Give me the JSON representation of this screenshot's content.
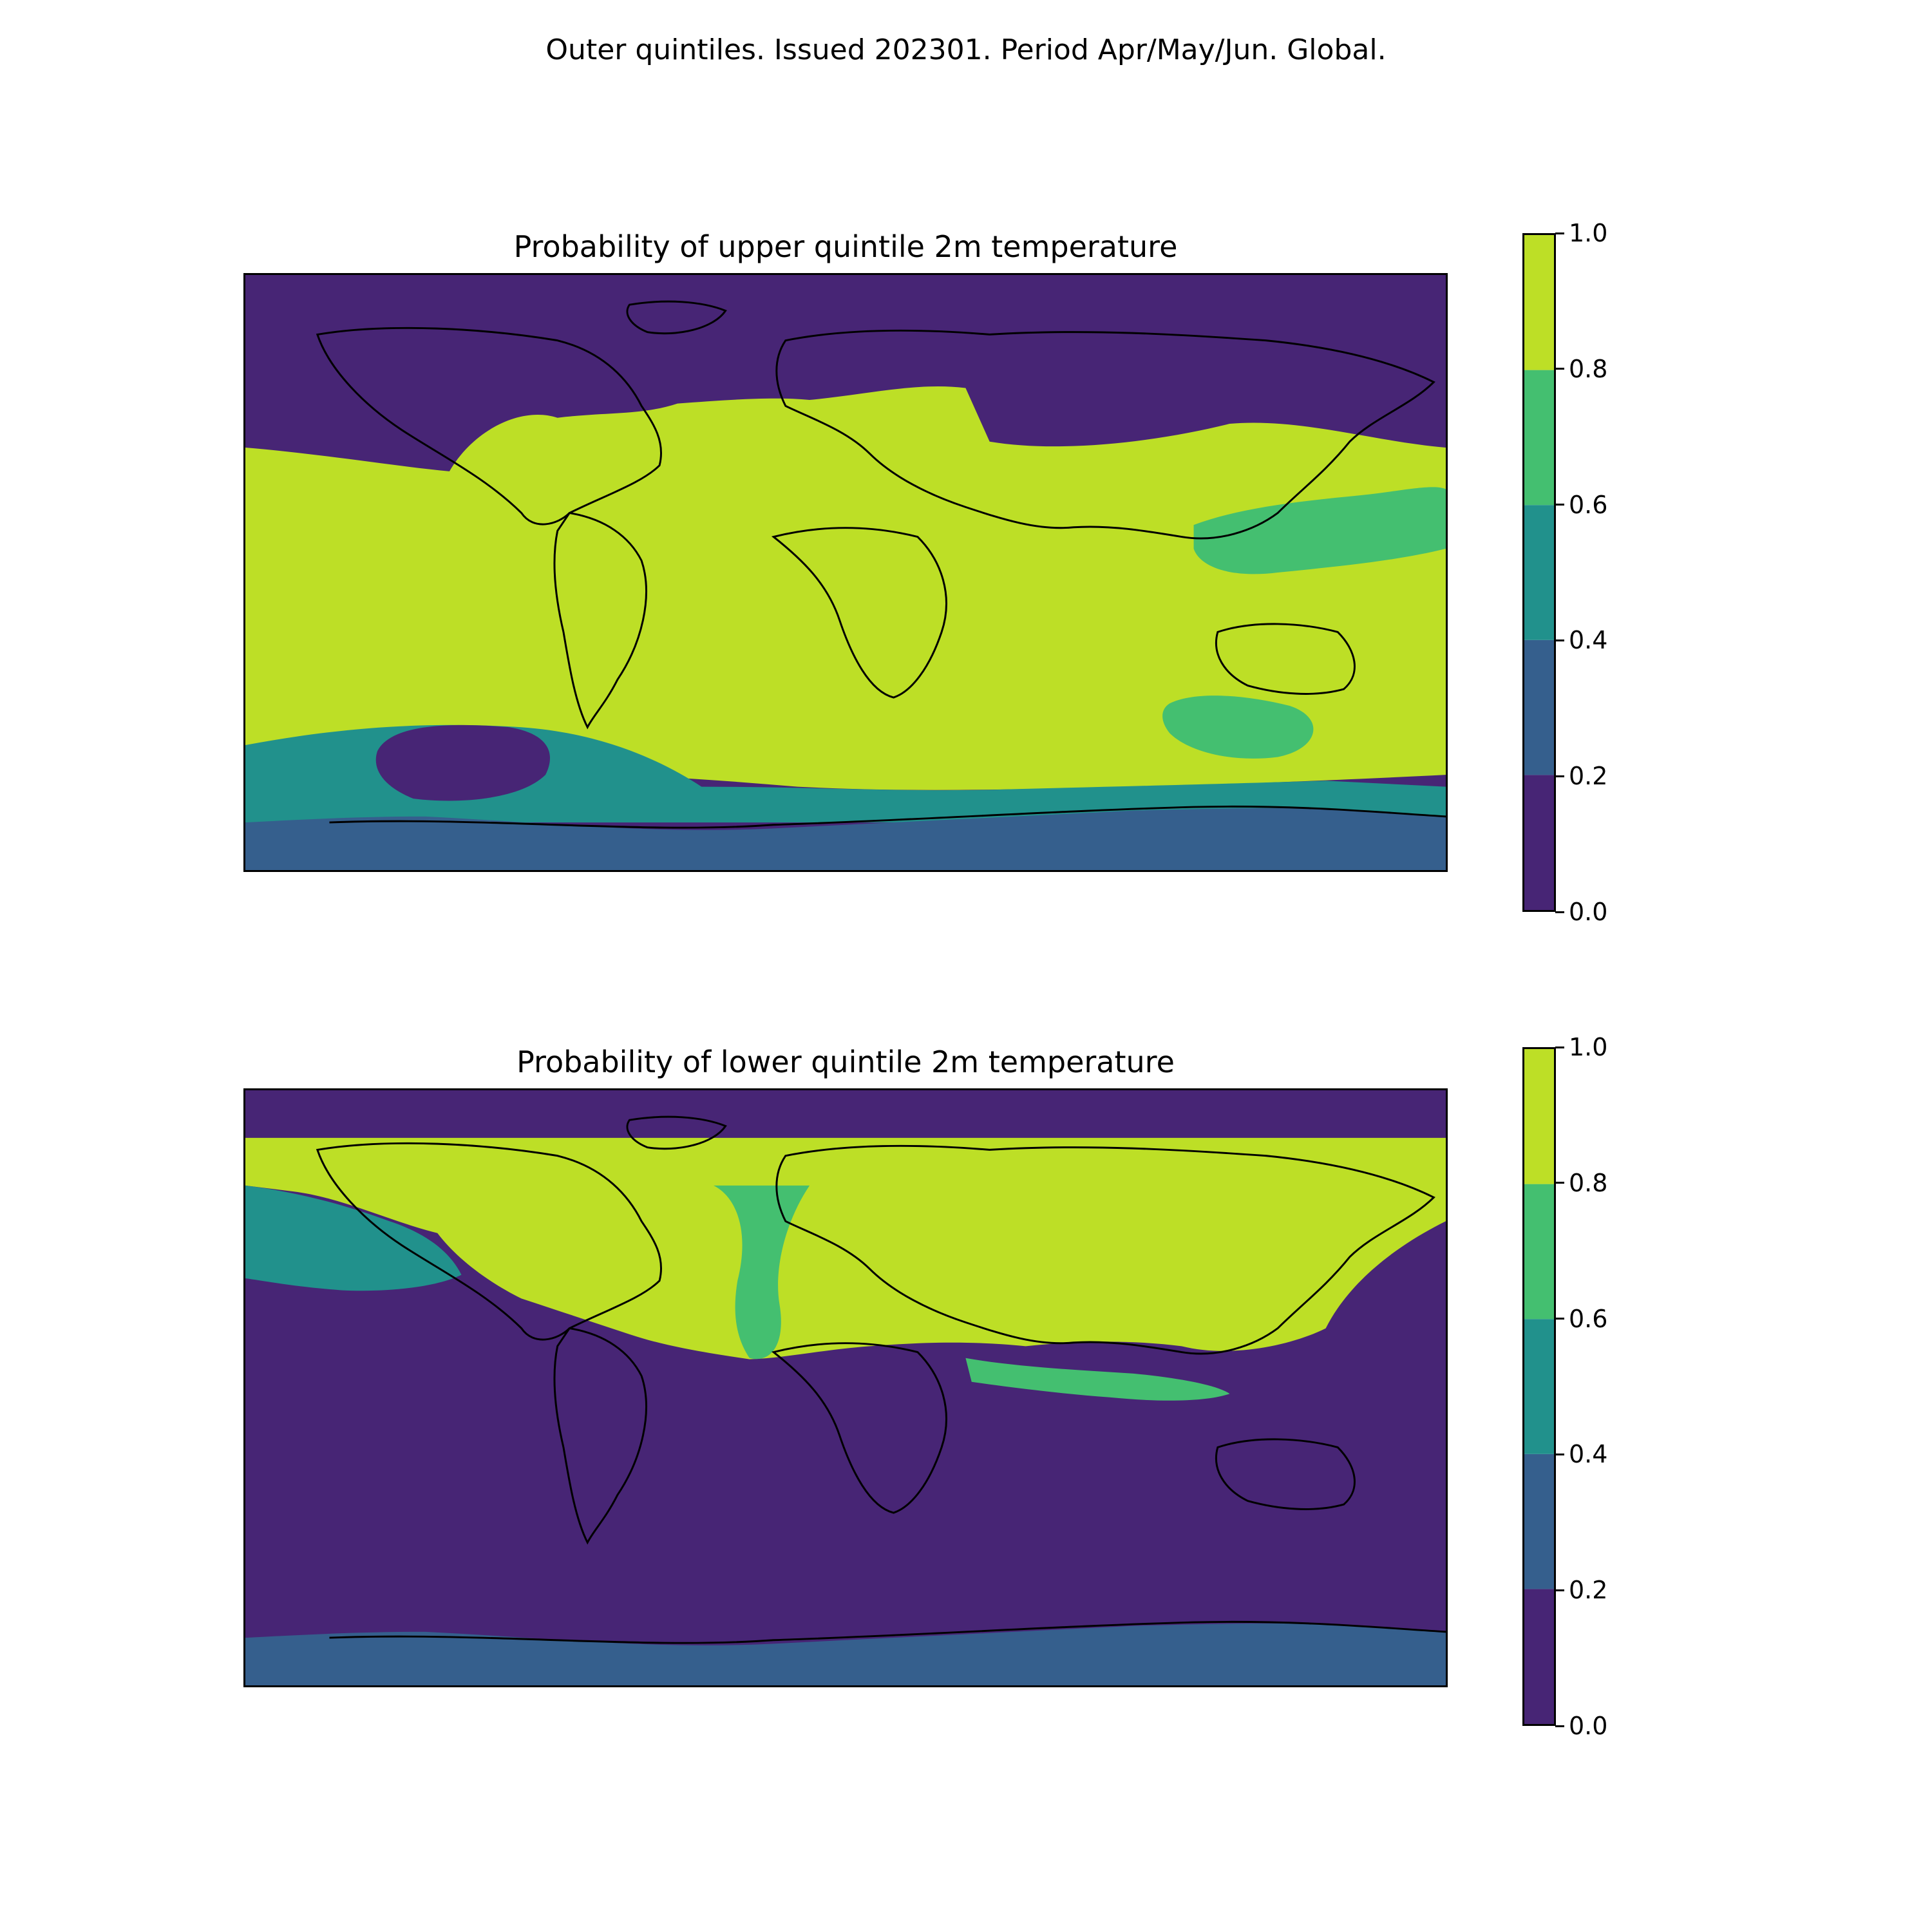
{
  "figure": {
    "suptitle": "Outer quintiles. Issued 202301. Period Apr/May/Jun. Global."
  },
  "colorbar": {
    "ticks": [
      "0.0",
      "0.2",
      "0.4",
      "0.6",
      "0.8",
      "1.0"
    ],
    "levels": [
      {
        "range": [
          0.0,
          0.2
        ],
        "color": "#472575"
      },
      {
        "range": [
          0.2,
          0.4
        ],
        "color": "#355f8d"
      },
      {
        "range": [
          0.4,
          0.6
        ],
        "color": "#21918c"
      },
      {
        "range": [
          0.6,
          0.8
        ],
        "color": "#44bf70"
      },
      {
        "range": [
          0.8,
          1.0
        ],
        "color": "#bddf26"
      }
    ]
  },
  "panels": [
    {
      "title": "Probability of upper quintile 2m temperature",
      "background_level": 0,
      "regions": [
        {
          "area": "tropical-southern-band",
          "level": 4
        },
        {
          "area": "southern-ocean-ring",
          "level": 2
        },
        {
          "area": "antarctic-coast",
          "level": 1
        },
        {
          "area": "south-pacific-gyre",
          "level": 0
        },
        {
          "area": "indian-ocean-patch",
          "level": 3
        },
        {
          "area": "west-pacific-warm-pool",
          "level": 3
        }
      ]
    },
    {
      "title": "Probability of lower quintile 2m temperature",
      "background_level": 0,
      "regions": [
        {
          "area": "northern-landmasses",
          "level": 4
        },
        {
          "area": "north-atlantic-channel",
          "level": 3
        },
        {
          "area": "north-pacific-margin",
          "level": 2
        },
        {
          "area": "south-indian-coast",
          "level": 3
        },
        {
          "area": "antarctic-coast",
          "level": 1
        }
      ]
    }
  ]
}
